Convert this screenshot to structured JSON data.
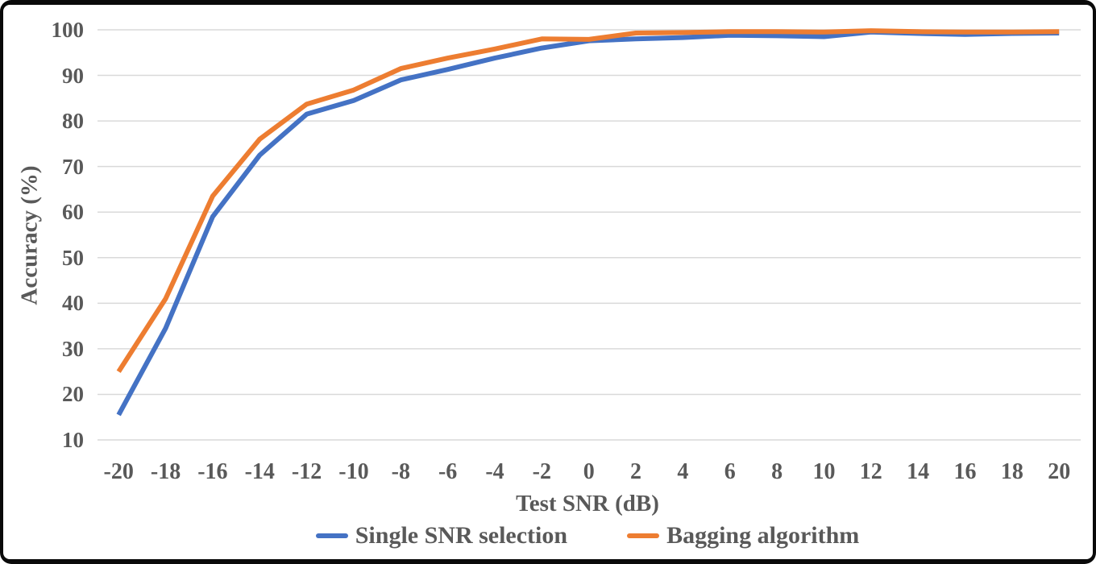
{
  "chart": {
    "y_title": "Accuracy (%)",
    "x_title": "Test SNR (dB)",
    "colors": {
      "blue": "#4472C4",
      "orange": "#ED7D31",
      "gridline": "#D9D9D9",
      "text": "#595959",
      "frame": "#0A0A0A",
      "background": "#FFFFFF"
    }
  },
  "chart_data": {
    "type": "line",
    "title": "",
    "xlabel": "Test SNR (dB)",
    "ylabel": "Accuracy (%)",
    "x": [
      -20,
      -18,
      -16,
      -14,
      -12,
      -10,
      -8,
      -6,
      -4,
      -2,
      0,
      2,
      4,
      6,
      8,
      10,
      12,
      14,
      16,
      18,
      20
    ],
    "series": [
      {
        "name": "Single SNR selection",
        "color_key": "blue",
        "values": [
          15.5,
          34.5,
          59,
          72.5,
          81.5,
          84.5,
          89,
          91.3,
          93.8,
          96,
          97.6,
          98,
          98.3,
          98.8,
          98.7,
          98.5,
          99.5,
          99.2,
          99,
          99.2,
          99.3
        ]
      },
      {
        "name": "Bagging algorithm",
        "color_key": "orange",
        "values": [
          25,
          41,
          63.5,
          76,
          83.7,
          86.8,
          91.5,
          93.8,
          95.8,
          98,
          97.9,
          99.3,
          99.4,
          99.6,
          99.6,
          99.5,
          99.8,
          99.6,
          99.5,
          99.5,
          99.6
        ]
      }
    ],
    "ylim": [
      10,
      100
    ],
    "y_ticks": [
      100,
      90,
      80,
      70,
      60,
      50,
      40,
      30,
      20,
      10
    ],
    "x_ticks": [
      -20,
      -18,
      -16,
      -14,
      -12,
      -10,
      -8,
      -6,
      -4,
      -2,
      0,
      2,
      4,
      6,
      8,
      10,
      12,
      14,
      16,
      18,
      20
    ],
    "grid": "horizontal",
    "legend_position": "bottom"
  }
}
